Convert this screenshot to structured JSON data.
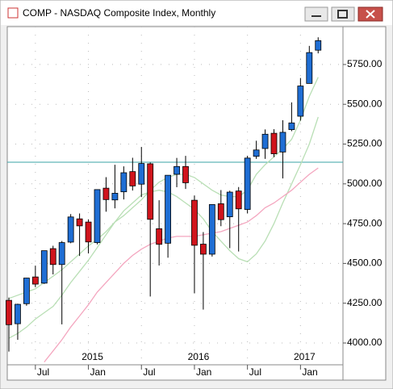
{
  "window_title": "COMP - NASDAQ Composite Index, Monthly",
  "chart_data": {
    "type": "candlestick",
    "categories": [
      null,
      null,
      null,
      "Jul",
      null,
      null,
      null,
      null,
      null,
      "Jan",
      null,
      null,
      null,
      null,
      null,
      "Jul",
      null,
      null,
      null,
      null,
      null,
      "Jan",
      null,
      null,
      null,
      null,
      null,
      "Jul",
      null,
      null,
      null,
      null,
      null,
      "Jan",
      null,
      null
    ],
    "year_labels": [
      null,
      null,
      null,
      null,
      null,
      null,
      null,
      null,
      null,
      "2015",
      null,
      null,
      null,
      null,
      null,
      null,
      null,
      null,
      null,
      null,
      null,
      "2016",
      null,
      null,
      null,
      null,
      null,
      null,
      null,
      null,
      null,
      null,
      null,
      "2017",
      null,
      null
    ],
    "open": [
      4268,
      4121,
      4247,
      4415,
      4376,
      4593,
      4493,
      4634,
      4780,
      4760,
      4631,
      4973,
      4899,
      4950,
      5077,
      4998,
      5126,
      4718,
      4627,
      5060,
      5109,
      4897,
      4621,
      4558,
      4875,
      4793,
      4955,
      4839,
      5173,
      5222,
      5318,
      5200,
      5341,
      5425,
      5631,
      5840
    ],
    "high": [
      4285,
      4247,
      4409,
      4486,
      4580,
      4611,
      4641,
      4810,
      4814,
      4777,
      4964,
      5042,
      5120,
      5110,
      5164,
      5232,
      5134,
      4897,
      5035,
      5163,
      5176,
      4927,
      4697,
      4870,
      4961,
      4957,
      4980,
      5176,
      5271,
      5342,
      5343,
      5400,
      5512,
      5665,
      5867,
      5921
    ],
    "low": [
      3946,
      4020,
      4234,
      4351,
      4371,
      4431,
      4117,
      4627,
      4547,
      4563,
      4620,
      4825,
      4846,
      4902,
      4958,
      4917,
      4292,
      4487,
      4536,
      4979,
      4968,
      4313,
      4210,
      4543,
      4734,
      4596,
      4575,
      4814,
      5157,
      5157,
      5168,
      5034,
      5331,
      5397,
      5631,
      5820
    ],
    "close": [
      4115,
      4243,
      4408,
      4370,
      4580,
      4493,
      4631,
      4792,
      4736,
      4635,
      4964,
      4901,
      4941,
      5070,
      4987,
      5128,
      4777,
      4620,
      5054,
      5109,
      5007,
      4614,
      4558,
      4870,
      4775,
      4948,
      4843,
      5162,
      5213,
      5312,
      5189,
      5324,
      5383,
      5615,
      5825,
      5900
    ],
    "up_color": "#1f6ed4",
    "down_color": "#d0141c",
    "overlays": [
      {
        "color": "#b9dfb5",
        "values": [
          4280,
          4300,
          4320,
          4340,
          4380,
          4420,
          4460,
          4510,
          4560,
          4610,
          4650,
          4700,
          4760,
          4800,
          4850,
          4900,
          4960,
          5010,
          5040,
          5060,
          5060,
          5040,
          5000,
          4960,
          4930,
          4920,
          4920,
          4960,
          5060,
          5120,
          5170,
          5220,
          5280,
          5400,
          5550,
          5670
        ]
      },
      {
        "color": "#b9dfb5",
        "values": [
          4030,
          4060,
          4100,
          4150,
          4190,
          4230,
          4300,
          4380,
          4450,
          4520,
          4600,
          4680,
          4760,
          4830,
          4880,
          4930,
          4950,
          4960,
          4950,
          4920,
          4880,
          4840,
          4780,
          4700,
          4640,
          4580,
          4530,
          4510,
          4560,
          4640,
          4750,
          4880,
          5000,
          5120,
          5250,
          5420
        ]
      },
      {
        "color": "#f4a6bf",
        "values": [
          null,
          null,
          null,
          null,
          3880,
          3950,
          4020,
          4100,
          4170,
          4240,
          4320,
          4380,
          4440,
          4500,
          4550,
          4590,
          4620,
          4640,
          4660,
          4670,
          4670,
          4670,
          4680,
          4690,
          4700,
          4720,
          4740,
          4760,
          4800,
          4850,
          4880,
          4920,
          4960,
          5010,
          5060,
          5100
        ]
      }
    ],
    "reference_line": {
      "value": 5136,
      "color": "#3aa3a6"
    },
    "ylim": [
      3863,
      5988
    ],
    "yticks": [
      {
        "value": 4000,
        "label": "4000.00"
      },
      {
        "value": 4250,
        "label": "4250.00"
      },
      {
        "value": 4500,
        "label": "4500.00"
      },
      {
        "value": 4750,
        "label": "4750.00"
      },
      {
        "value": 5000,
        "label": "5000.00"
      },
      {
        "value": 5250,
        "label": "5250.00"
      },
      {
        "value": 5500,
        "label": "5500.00"
      },
      {
        "value": 5750,
        "label": "5750.00"
      }
    ],
    "grid": true
  }
}
